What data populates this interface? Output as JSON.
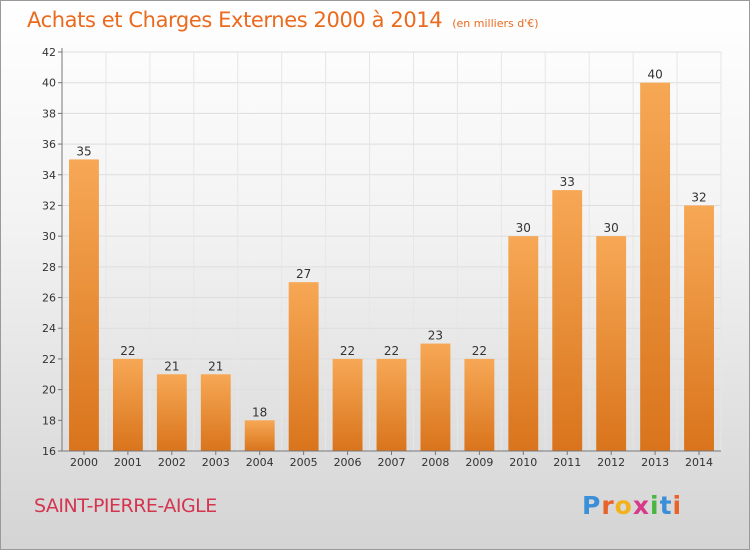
{
  "header": {
    "title": "Achats et Charges Externes 2000 à 2014",
    "subtitle": "(en milliers d'€)"
  },
  "footer": {
    "city": "SAINT-PIERRE-AIGLE",
    "logo": "Proxiti"
  },
  "colors": {
    "title": "#ea6a1e",
    "city": "#d4354f",
    "bar_top": "#f7a855",
    "bar_bottom": "#d9741c"
  },
  "chart_data": {
    "type": "bar",
    "title": "Achats et Charges Externes 2000 à 2014",
    "subtitle": "(en milliers d'€)",
    "xlabel": "",
    "ylabel": "",
    "categories": [
      "2000",
      "2001",
      "2002",
      "2003",
      "2004",
      "2005",
      "2006",
      "2007",
      "2008",
      "2009",
      "2010",
      "2011",
      "2012",
      "2013",
      "2014"
    ],
    "values": [
      35,
      22,
      21,
      21,
      18,
      27,
      22,
      22,
      23,
      22,
      30,
      33,
      30,
      40,
      32
    ],
    "ylim": [
      16,
      42
    ],
    "yticks": [
      16,
      18,
      20,
      22,
      24,
      26,
      28,
      30,
      32,
      34,
      36,
      38,
      40,
      42
    ],
    "grid": true
  }
}
